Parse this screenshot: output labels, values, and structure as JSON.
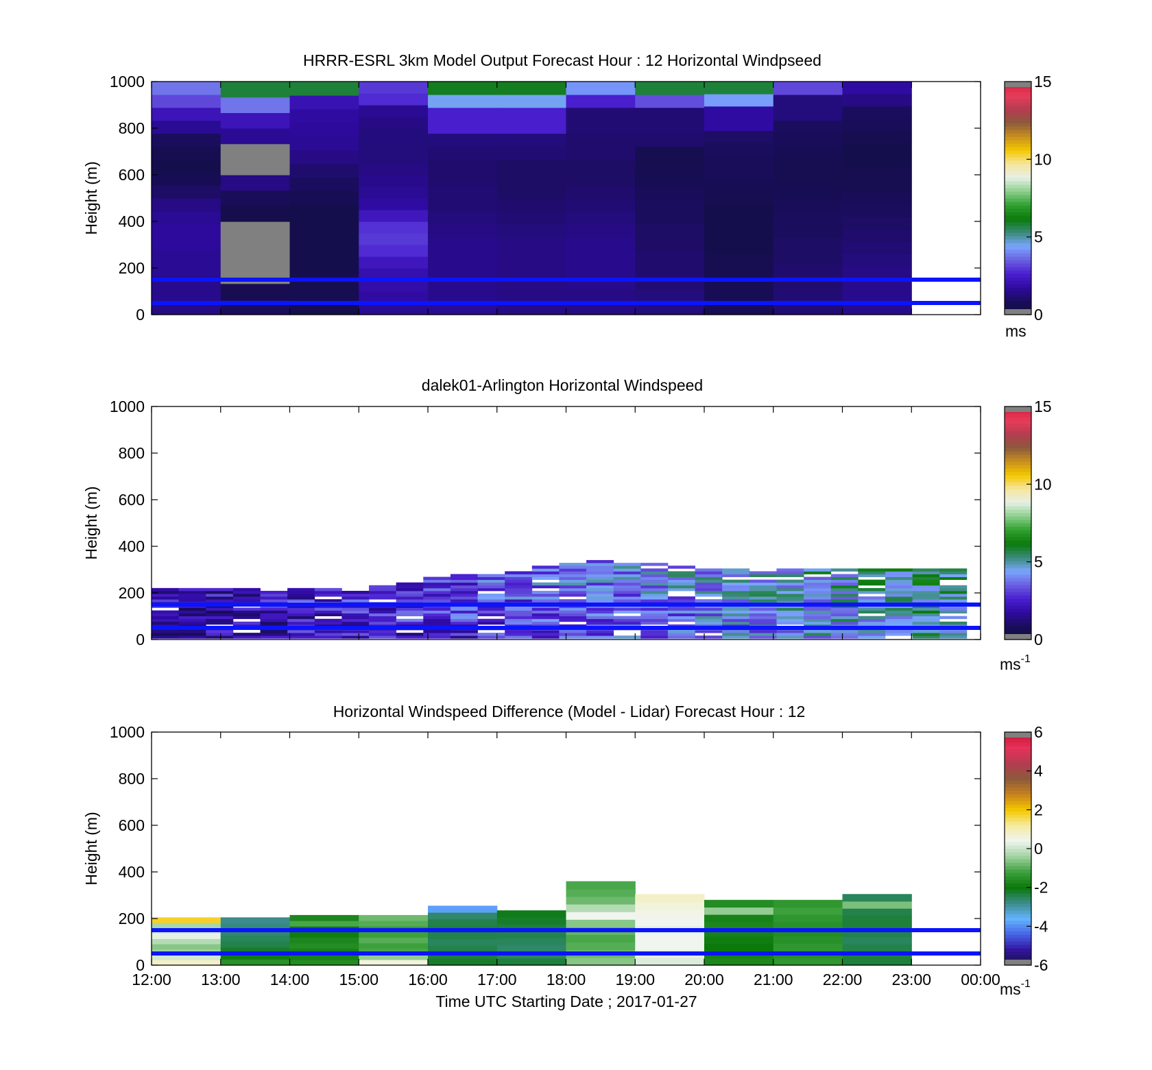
{
  "figure": {
    "xlabel": "Time UTC  Starting Date ; 2017-01-27",
    "x_ticks": [
      "12:00",
      "13:00",
      "14:00",
      "15:00",
      "16:00",
      "17:00",
      "18:00",
      "19:00",
      "20:00",
      "21:00",
      "22:00",
      "23:00",
      "00:00"
    ]
  },
  "colors": {
    "reference_lines": "#0a14ff",
    "nan_gray": "#808080"
  },
  "colormaps": {
    "windspeed": [
      "#0d0f3a",
      "#1a0d5c",
      "#2e0aa0",
      "#4a1fd0",
      "#6b5fe0",
      "#7aa6ff",
      "#3a8a7a",
      "#0a7a0a",
      "#2ea02e",
      "#8ccf8c",
      "#e6f0e6",
      "#f5e6a0",
      "#f5c800",
      "#c8901e",
      "#8c5a3c",
      "#b43c50",
      "#e83c5a",
      "#d21e3c"
    ],
    "difference": [
      "#14143c",
      "#3214a0",
      "#4664e6",
      "#64b4ff",
      "#3c8c8c",
      "#0a780a",
      "#3ca03c",
      "#a0d2a0",
      "#f0f5f0",
      "#f5eba0",
      "#f5c800",
      "#c8821e",
      "#8c5a3c",
      "#b43c50",
      "#e6325a",
      "#c81432"
    ]
  },
  "chart_data": [
    {
      "type": "heatmap",
      "title": "HRRR-ESRL 3km Model Output   Forecast Hour : 12 Horizontal Windpseed",
      "ylabel": "Height (m)",
      "ylim": [
        0,
        1000
      ],
      "y_ticks": [
        "0",
        "200",
        "400",
        "600",
        "800",
        "1000"
      ],
      "colorbar": {
        "ticks": [
          "0",
          "5",
          "10",
          "15"
        ],
        "range": [
          0,
          15
        ],
        "unit": "ms"
      },
      "reference_lines_m": [
        150,
        50
      ],
      "time_start_hours": [
        0,
        1,
        2,
        3,
        4,
        5,
        6,
        7,
        8,
        9,
        10
      ],
      "height_levels_m": [
        20,
        60,
        100,
        150,
        200,
        250,
        300,
        350,
        400,
        450,
        500,
        550,
        600,
        650,
        700,
        750,
        800,
        850,
        900,
        950,
        1000
      ],
      "values": [
        [
          1.4,
          1.5,
          1.5,
          1.6,
          1.6,
          1.7,
          1.7,
          1.6,
          1.4,
          1.0,
          0.7,
          0.5,
          0.6,
          0.9,
          1.6,
          2.2,
          3.2,
          3.8
        ],
        [
          0.9,
          0.6,
          null,
          null,
          null,
          null,
          0.5,
          0.8,
          1.4,
          null,
          null,
          1.6,
          2.2,
          3.8,
          5.8
        ],
        [
          0.5,
          0.6,
          0.6,
          0.5,
          0.5,
          0.5,
          0.5,
          0.5,
          0.7,
          0.9,
          1.1,
          1.4,
          1.6,
          1.7,
          1.8,
          2.1,
          5.8
        ],
        [
          1.6,
          1.8,
          1.9,
          2.0,
          2.3,
          2.8,
          3.0,
          2.9,
          2.3,
          1.8,
          1.6,
          1.5,
          1.4,
          1.3,
          1.3,
          1.3,
          1.4,
          1.6,
          2.8,
          3.0
        ],
        [
          1.6,
          1.5,
          1.5,
          1.5,
          1.5,
          1.5,
          1.4,
          1.3,
          1.2,
          1.2,
          1.1,
          1.1,
          1.2,
          1.3,
          2.6,
          2.6,
          4.5,
          6.0
        ],
        [
          1.4,
          1.4,
          1.4,
          1.4,
          1.4,
          1.4,
          1.3,
          1.2,
          1.1,
          1.0,
          1.0,
          1.0,
          1.2,
          1.3,
          2.6,
          2.6,
          4.5,
          6.0
        ],
        [
          1.4,
          1.4,
          1.5,
          1.5,
          1.5,
          1.5,
          1.4,
          1.3,
          1.2,
          1.1,
          1.0,
          1.0,
          1.1,
          1.1,
          1.2,
          1.2,
          2.6,
          4.2
        ],
        [
          1.3,
          1.3,
          1.2,
          1.1,
          1.1,
          1.0,
          1.0,
          0.9,
          0.9,
          0.8,
          0.7,
          0.6,
          0.6,
          1.1,
          1.2,
          1.2,
          3.3,
          5.8
        ],
        [
          0.7,
          0.7,
          0.7,
          0.6,
          0.6,
          0.5,
          0.5,
          0.5,
          0.5,
          0.6,
          0.7,
          0.8,
          0.8,
          0.9,
          1.0,
          1.8,
          1.8,
          4.3,
          5.8
        ],
        [
          1.2,
          1.2,
          1.1,
          1.1,
          1.0,
          1.0,
          0.9,
          0.9,
          0.8,
          0.7,
          0.6,
          0.6,
          0.7,
          0.8,
          0.9,
          1.3,
          1.3,
          3.2
        ],
        [
          1.5,
          1.5,
          1.5,
          1.4,
          1.3,
          1.2,
          1.1,
          1.0,
          0.9,
          0.8,
          0.6,
          0.6,
          0.5,
          0.5,
          0.6,
          0.8,
          0.9,
          1.4,
          1.8
        ]
      ]
    },
    {
      "type": "heatmap",
      "title": "dalek01-Arlington  Horizontal Windspeed",
      "ylabel": "Height (m)",
      "ylim": [
        0,
        1000
      ],
      "y_ticks": [
        "0",
        "200",
        "400",
        "600",
        "800",
        "1000"
      ],
      "colorbar": {
        "ticks": [
          "0",
          "5",
          "10",
          "15"
        ],
        "range": [
          0,
          15
        ],
        "unit": "ms",
        "unit_exponent": "-1"
      },
      "reference_lines_m": [
        150,
        50
      ],
      "x_range_hours": [
        0,
        11.8
      ],
      "profile_top_m": [
        210,
        220,
        215,
        220,
        200,
        210,
        215,
        200,
        230,
        240,
        260,
        270,
        280,
        290,
        310,
        320,
        340,
        320,
        320,
        310,
        300,
        300,
        290,
        300,
        300,
        305,
        300,
        300,
        295,
        300
      ]
    },
    {
      "type": "heatmap",
      "title": "Horizontal Windspeed Difference (Model - Lidar) Forecast Hour : 12",
      "ylabel": "Height (m)",
      "ylim": [
        0,
        1000
      ],
      "y_ticks": [
        "0",
        "200",
        "400",
        "600",
        "800",
        "1000"
      ],
      "colorbar": {
        "ticks": [
          "-6",
          "-4",
          "-2",
          "0",
          "2",
          "4",
          "6"
        ],
        "range": [
          -6,
          6
        ],
        "unit": "ms",
        "unit_exponent": "-1"
      },
      "reference_lines_m": [
        150,
        50
      ],
      "time_start_hours": [
        0,
        1,
        2,
        3,
        4,
        5,
        6,
        7,
        8,
        9,
        10
      ],
      "column_tops_m": [
        205,
        205,
        215,
        215,
        255,
        235,
        360,
        305,
        280,
        280,
        305
      ],
      "values": [
        [
          0.8,
          0.1,
          -0.4,
          -0.6,
          -0.2,
          0.3,
          0.1,
          -0.3,
          1.8
        ],
        [
          -1.5,
          -1.9,
          -2.2,
          -2.4,
          -2.5,
          -2.6,
          -2.7,
          -2.8
        ],
        [
          -1.6,
          -1.8,
          -1.8,
          -1.6,
          -1.7,
          -1.9,
          -2.0,
          -1.1,
          -1.7
        ],
        [
          0.6,
          -0.5,
          -1.1,
          -1.2,
          -1.0,
          -1.2,
          -1.3,
          -1.0,
          -0.8
        ],
        [
          -2.2,
          -2.3,
          -2.4,
          -2.5,
          -2.4,
          -2.3,
          -2.4,
          -2.6,
          -3.8
        ],
        [
          -2.3,
          -2.5,
          -2.6,
          -2.5,
          -2.4,
          -2.3,
          -2.2,
          -2.1
        ],
        [
          -0.6,
          -0.8,
          -1.0,
          -1.1,
          -0.9,
          -0.6,
          0.4,
          -0.2,
          -0.8,
          -1.0,
          -1.1
        ],
        [
          0.2,
          0.3,
          0.4,
          0.4,
          0.3,
          0.4,
          0.5,
          0.6,
          0.8
        ],
        [
          -1.7,
          -1.8,
          -2.0,
          -1.9,
          -1.8,
          -1.7,
          -1.8,
          -0.5,
          -1.6
        ],
        [
          -1.4,
          -1.5,
          -1.4,
          -1.5,
          -1.6,
          -1.5,
          -1.4,
          -1.2,
          -1.4
        ],
        [
          -2.3,
          -2.3,
          -2.4,
          -2.5,
          -2.4,
          -2.3,
          -2.3,
          -2.4,
          -0.7,
          -2.5
        ]
      ]
    }
  ]
}
